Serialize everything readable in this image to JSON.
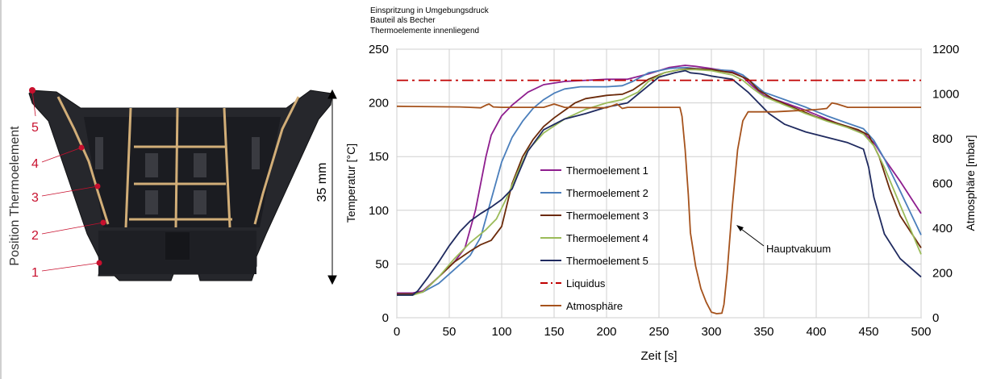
{
  "figure": {
    "photo_ylabel": "Position Thermoelement",
    "dimension_label": "35 mm",
    "positions": [
      "1",
      "2",
      "3",
      "4",
      "5"
    ]
  },
  "chart_data": {
    "type": "line",
    "notes": [
      "Einspritzung  in Umgebungsdruck",
      "Bauteil als Becher",
      "Thermoelemente  innenliegend"
    ],
    "xlabel": "Zeit [s]",
    "ylabel": "Temperatur [°C]",
    "y2label": "Atmosphäre [mbar]",
    "xlim": [
      0,
      500
    ],
    "ylim": [
      0,
      250
    ],
    "y2lim": [
      0,
      1200
    ],
    "xticks": [
      0,
      50,
      100,
      150,
      200,
      250,
      300,
      350,
      400,
      450,
      500
    ],
    "yticks": [
      0,
      50,
      100,
      150,
      200,
      250
    ],
    "y2ticks": [
      0,
      200,
      400,
      600,
      800,
      1000,
      1200
    ],
    "grid": true,
    "legend_position": "inside-left",
    "annotation": {
      "text": "Hauptvakuum",
      "arrow_to": [
        322,
        88
      ]
    },
    "series": [
      {
        "name": "Thermoelement 1",
        "axis": "left",
        "color": "#8E1E8E",
        "dash": "",
        "x": [
          0,
          15,
          25,
          40,
          55,
          65,
          75,
          85,
          90,
          100,
          110,
          125,
          140,
          160,
          180,
          200,
          210,
          220,
          240,
          260,
          275,
          285,
          300,
          320,
          330,
          340,
          350,
          370,
          390,
          410,
          430,
          445,
          455,
          465,
          480,
          500
        ],
        "y": [
          23,
          23,
          25,
          38,
          52,
          65,
          100,
          150,
          170,
          188,
          198,
          210,
          217,
          220,
          221,
          222,
          222,
          222,
          227,
          233,
          235,
          234,
          232,
          229,
          224,
          215,
          207,
          200,
          193,
          185,
          177,
          172,
          163,
          148,
          127,
          97
        ]
      },
      {
        "name": "Thermoelement 2",
        "axis": "left",
        "color": "#4A7EBB",
        "dash": "",
        "x": [
          0,
          15,
          25,
          40,
          55,
          70,
          80,
          90,
          100,
          110,
          120,
          130,
          140,
          150,
          160,
          175,
          190,
          200,
          215,
          225,
          240,
          260,
          275,
          285,
          300,
          320,
          330,
          340,
          350,
          370,
          390,
          410,
          430,
          445,
          455,
          465,
          480,
          500
        ],
        "y": [
          22,
          22,
          24,
          32,
          45,
          58,
          75,
          110,
          145,
          168,
          183,
          195,
          203,
          209,
          213,
          215,
          215,
          215,
          216,
          220,
          228,
          232,
          233,
          232,
          231,
          230,
          226,
          218,
          210,
          203,
          196,
          188,
          181,
          176,
          165,
          148,
          118,
          77
        ]
      },
      {
        "name": "Thermoelement 3",
        "axis": "left",
        "color": "#6B2A0A",
        "dash": "",
        "x": [
          0,
          15,
          25,
          40,
          55,
          70,
          80,
          90,
          100,
          105,
          110,
          120,
          130,
          140,
          150,
          160,
          170,
          180,
          200,
          215,
          225,
          240,
          255,
          270,
          280,
          300,
          320,
          335,
          345,
          360,
          380,
          400,
          420,
          440,
          450,
          460,
          470,
          480,
          500
        ],
        "y": [
          22,
          22,
          24,
          38,
          52,
          62,
          68,
          72,
          85,
          105,
          125,
          150,
          166,
          178,
          186,
          193,
          200,
          204,
          207,
          208,
          212,
          222,
          228,
          231,
          232,
          231,
          228,
          222,
          212,
          203,
          195,
          187,
          181,
          175,
          170,
          150,
          120,
          95,
          65
        ]
      },
      {
        "name": "Thermoelement 4",
        "axis": "left",
        "color": "#9BBB59",
        "dash": "",
        "x": [
          0,
          15,
          25,
          40,
          55,
          70,
          85,
          95,
          105,
          115,
          125,
          140,
          160,
          180,
          200,
          215,
          230,
          240,
          255,
          270,
          285,
          300,
          320,
          330,
          340,
          350,
          370,
          390,
          410,
          430,
          445,
          455,
          465,
          480,
          500
        ],
        "y": [
          21,
          21,
          24,
          38,
          55,
          70,
          82,
          92,
          112,
          135,
          156,
          172,
          185,
          194,
          200,
          203,
          210,
          220,
          228,
          231,
          231,
          230,
          226,
          221,
          213,
          206,
          198,
          190,
          183,
          177,
          171,
          160,
          140,
          105,
          59
        ]
      },
      {
        "name": "Thermoelement 5",
        "axis": "left",
        "color": "#1F2A5F",
        "dash": "",
        "x": [
          0,
          15,
          20,
          30,
          40,
          50,
          60,
          70,
          80,
          90,
          100,
          110,
          115,
          125,
          140,
          160,
          180,
          200,
          210,
          220,
          235,
          250,
          265,
          275,
          280,
          290,
          300,
          320,
          335,
          345,
          355,
          370,
          390,
          410,
          430,
          445,
          450,
          455,
          465,
          480,
          500
        ],
        "y": [
          21,
          21,
          25,
          38,
          52,
          67,
          80,
          90,
          97,
          103,
          110,
          120,
          132,
          155,
          175,
          185,
          190,
          196,
          198,
          200,
          212,
          224,
          228,
          230,
          228,
          227,
          225,
          222,
          210,
          200,
          190,
          180,
          173,
          168,
          163,
          157,
          140,
          112,
          78,
          55,
          38
        ]
      },
      {
        "name": "Liquidus",
        "axis": "left",
        "color": "#C00000",
        "dash": "14 5 3 5",
        "x": [
          0,
          500
        ],
        "y": [
          221,
          221
        ]
      },
      {
        "name": "Atmosphäre",
        "axis": "right",
        "color": "#A5521C",
        "dash": "",
        "x": [
          0,
          60,
          70,
          80,
          85,
          88,
          92,
          100,
          140,
          150,
          160,
          200,
          210,
          215,
          220,
          270,
          272,
          275,
          278,
          280,
          285,
          290,
          295,
          300,
          305,
          310,
          312,
          315,
          320,
          325,
          330,
          335,
          340,
          360,
          380,
          400,
          410,
          415,
          420,
          430,
          450,
          500
        ],
        "y": [
          945,
          942,
          940,
          938,
          950,
          955,
          942,
          940,
          940,
          955,
          940,
          938,
          955,
          935,
          940,
          940,
          900,
          750,
          550,
          380,
          230,
          130,
          70,
          25,
          18,
          20,
          60,
          200,
          500,
          750,
          880,
          920,
          920,
          920,
          925,
          930,
          935,
          960,
          955,
          940,
          940,
          940
        ]
      }
    ]
  }
}
